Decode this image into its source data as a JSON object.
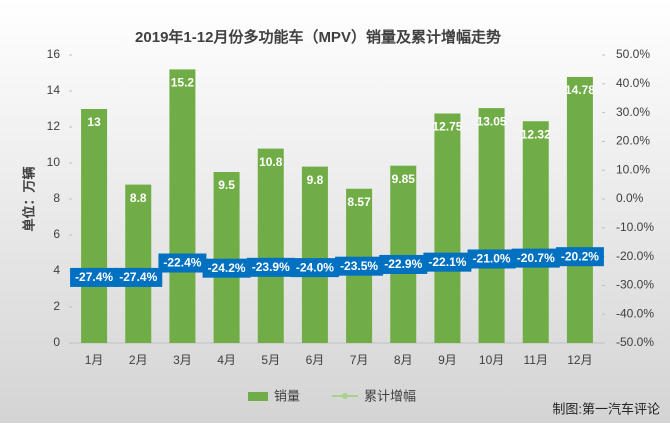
{
  "chart_data": {
    "type": "combo",
    "title": "2019年1-12月份多功能车（MPV）销量及累计增幅走势",
    "y_label": "单位：万辆",
    "source": "制图:第一汽车评论",
    "categories": [
      "1月",
      "2月",
      "3月",
      "4月",
      "5月",
      "6月",
      "7月",
      "8月",
      "9月",
      "10月",
      "11月",
      "12月"
    ],
    "series": [
      {
        "name": "销量",
        "type": "bar",
        "color": "#70ad47",
        "values": [
          13,
          8.8,
          15.2,
          9.5,
          10.8,
          9.8,
          8.57,
          9.85,
          12.75,
          13.05,
          12.32,
          14.78
        ]
      },
      {
        "name": "累计增幅",
        "type": "line",
        "axis": "y2",
        "color": "#a9d18e",
        "values": [
          -27.4,
          -27.4,
          -22.4,
          -24.2,
          -23.9,
          -24.0,
          -23.5,
          -22.9,
          -22.1,
          -21.0,
          -20.7,
          -20.2
        ],
        "value_labels": [
          "-27.4%",
          "-27.4%",
          "-22.4%",
          "-24.2%",
          "-23.9%",
          "-24.0%",
          "-23.5%",
          "-22.9%",
          "-22.1%",
          "-21.0%",
          "-20.7%",
          "-20.2%"
        ]
      }
    ],
    "ylim": [
      0,
      16
    ],
    "yticks": [
      0,
      2,
      4,
      6,
      8,
      10,
      12,
      14,
      16
    ],
    "y2lim": [
      -50,
      50
    ],
    "y2ticks": [
      {
        "value": -50,
        "label": "-50.0%"
      },
      {
        "value": -40,
        "label": "-40.0%"
      },
      {
        "value": -30,
        "label": "-30.0%"
      },
      {
        "value": -20,
        "label": "-20.0%"
      },
      {
        "value": -10,
        "label": "-10.0%"
      },
      {
        "value": 0,
        "label": "0.0%"
      },
      {
        "value": 10,
        "label": "10.0%"
      },
      {
        "value": 20,
        "label": "20.0%"
      },
      {
        "value": 30,
        "label": "30.0%"
      },
      {
        "value": 40,
        "label": "40.0%"
      },
      {
        "value": 50,
        "label": "50.0%"
      }
    ],
    "label_box_color": "#0070c0",
    "legend": "bottom"
  }
}
